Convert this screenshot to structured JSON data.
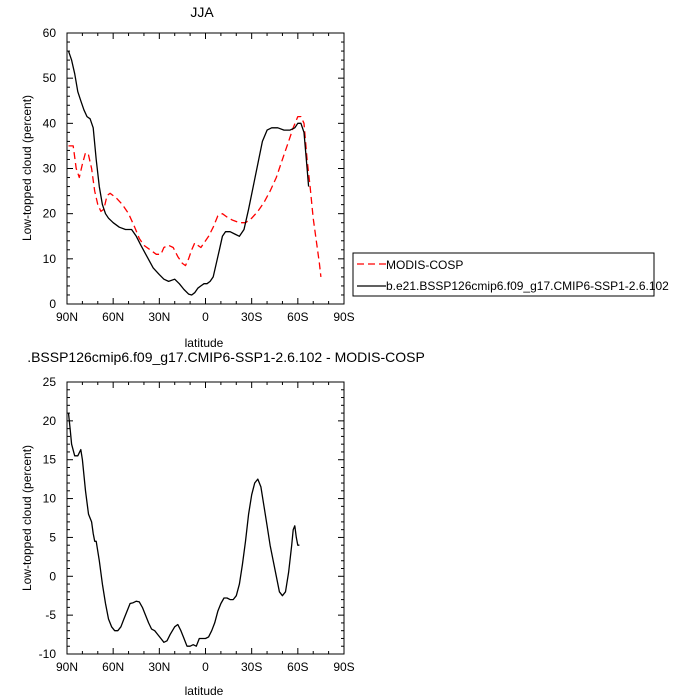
{
  "chart_data": [
    {
      "type": "line",
      "title": "JJA",
      "xlabel": "latitude",
      "ylabel": "Low-topped cloud (percent)",
      "xlim": [
        90,
        -90
      ],
      "ylim": [
        0,
        60
      ],
      "x_ticks": [
        90,
        60,
        30,
        0,
        -30,
        -60,
        -90
      ],
      "x_tick_labels": [
        "90N",
        "60N",
        "30N",
        "0",
        "30S",
        "60S",
        "90S"
      ],
      "y_ticks": [
        0,
        10,
        20,
        30,
        40,
        50,
        60
      ],
      "y_tick_labels": [
        "0",
        "10",
        "20",
        "30",
        "40",
        "50",
        "60"
      ],
      "legend_position": "right",
      "series": [
        {
          "name": "MODIS-COSP",
          "color": "#ff0000",
          "dash": "dashed",
          "points": [
            [
              89,
              35
            ],
            [
              86,
              35
            ],
            [
              84,
              30
            ],
            [
              82,
              28
            ],
            [
              80,
              31
            ],
            [
              78,
              33.5
            ],
            [
              76,
              33
            ],
            [
              74,
              30
            ],
            [
              72,
              25
            ],
            [
              70,
              22
            ],
            [
              68,
              20.5
            ],
            [
              66,
              21
            ],
            [
              64,
              24
            ],
            [
              62,
              24.5
            ],
            [
              58,
              23.5
            ],
            [
              54,
              22
            ],
            [
              50,
              20
            ],
            [
              46,
              17
            ],
            [
              43,
              14.5
            ],
            [
              40,
              13
            ],
            [
              36,
              12
            ],
            [
              32,
              11
            ],
            [
              29,
              11
            ],
            [
              27,
              12.5
            ],
            [
              24,
              13
            ],
            [
              21,
              12.5
            ],
            [
              18,
              10.5
            ],
            [
              15,
              9
            ],
            [
              13,
              8.5
            ],
            [
              11,
              10
            ],
            [
              9,
              12
            ],
            [
              7,
              13.5
            ],
            [
              5,
              13
            ],
            [
              3,
              12.5
            ],
            [
              1,
              13.5
            ],
            [
              -2,
              15
            ],
            [
              -5,
              17
            ],
            [
              -8,
              19.5
            ],
            [
              -11,
              20
            ],
            [
              -15,
              19
            ],
            [
              -18,
              18.5
            ],
            [
              -22,
              18
            ],
            [
              -26,
              18
            ],
            [
              -30,
              19
            ],
            [
              -34,
              20.5
            ],
            [
              -38,
              22.5
            ],
            [
              -42,
              25
            ],
            [
              -46,
              28
            ],
            [
              -50,
              32
            ],
            [
              -54,
              36
            ],
            [
              -57,
              39
            ],
            [
              -60,
              41.5
            ],
            [
              -62,
              41.5
            ],
            [
              -64,
              40
            ],
            [
              -66,
              32
            ],
            [
              -68,
              26
            ],
            [
              -70,
              19
            ],
            [
              -72,
              14
            ],
            [
              -74,
              9
            ],
            [
              -75,
              6
            ]
          ]
        },
        {
          "name": "b.e21.BSSP126cmip6.f09_g17.CMIP6-SSP1-2.6.102",
          "color": "#000000",
          "dash": "solid",
          "points": [
            [
              89,
              56
            ],
            [
              87,
              54
            ],
            [
              85,
              51
            ],
            [
              83,
              47
            ],
            [
              81,
              45
            ],
            [
              79,
              43
            ],
            [
              77,
              41.5
            ],
            [
              75,
              41
            ],
            [
              73,
              39
            ],
            [
              71,
              32
            ],
            [
              69,
              26
            ],
            [
              67,
              22
            ],
            [
              65,
              20
            ],
            [
              63,
              19
            ],
            [
              60,
              18
            ],
            [
              56,
              17
            ],
            [
              52,
              16.5
            ],
            [
              48,
              16.5
            ],
            [
              45,
              15
            ],
            [
              42,
              13
            ],
            [
              38,
              10.5
            ],
            [
              34,
              8
            ],
            [
              30,
              6.5
            ],
            [
              27,
              5.5
            ],
            [
              24,
              5
            ],
            [
              20,
              5.5
            ],
            [
              17,
              4.5
            ],
            [
              14,
              3.2
            ],
            [
              11,
              2.2
            ],
            [
              9,
              2
            ],
            [
              7,
              2.5
            ],
            [
              5,
              3.5
            ],
            [
              3,
              4
            ],
            [
              1,
              4.5
            ],
            [
              -1,
              4.5
            ],
            [
              -3,
              5
            ],
            [
              -5,
              6
            ],
            [
              -7,
              9
            ],
            [
              -9,
              12
            ],
            [
              -11,
              15
            ],
            [
              -13,
              16
            ],
            [
              -16,
              16
            ],
            [
              -19,
              15.5
            ],
            [
              -22,
              15
            ],
            [
              -25,
              16.5
            ],
            [
              -28,
              21
            ],
            [
              -31,
              26
            ],
            [
              -34,
              31
            ],
            [
              -37,
              36
            ],
            [
              -40,
              38.5
            ],
            [
              -43,
              39
            ],
            [
              -47,
              39
            ],
            [
              -51,
              38.5
            ],
            [
              -55,
              38.5
            ],
            [
              -58,
              39
            ],
            [
              -60,
              40
            ],
            [
              -62,
              40
            ],
            [
              -64,
              38
            ],
            [
              -66,
              30
            ],
            [
              -67,
              26
            ]
          ]
        }
      ]
    },
    {
      "type": "line",
      "title": ".BSSP126cmip6.f09_g17.CMIP6-SSP1-2.6.102 - MODIS-COSP",
      "xlabel": "latitude",
      "ylabel": "Low-topped cloud (percent)",
      "xlim": [
        90,
        -90
      ],
      "ylim": [
        -10,
        25
      ],
      "x_ticks": [
        90,
        60,
        30,
        0,
        -30,
        -60,
        -90
      ],
      "x_tick_labels": [
        "90N",
        "60N",
        "30N",
        "0",
        "30S",
        "60S",
        "90S"
      ],
      "y_ticks": [
        -10,
        -5,
        0,
        5,
        10,
        15,
        20,
        25
      ],
      "y_tick_labels": [
        "-10",
        "-5",
        "0",
        "5",
        "10",
        "15",
        "20",
        "25"
      ],
      "series": [
        {
          "color": "#000000",
          "dash": "solid",
          "points": [
            [
              89,
              21
            ],
            [
              88,
              19
            ],
            [
              87,
              17
            ],
            [
              85,
              15.5
            ],
            [
              83,
              15.5
            ],
            [
              81,
              16.3
            ],
            [
              80,
              15
            ],
            [
              78,
              11
            ],
            [
              76,
              8
            ],
            [
              74,
              7
            ],
            [
              73,
              5.5
            ],
            [
              72,
              4.5
            ],
            [
              71,
              4.5
            ],
            [
              69,
              2
            ],
            [
              67,
              -1
            ],
            [
              65,
              -3.5
            ],
            [
              63,
              -5.5
            ],
            [
              61,
              -6.5
            ],
            [
              59,
              -7
            ],
            [
              57,
              -7
            ],
            [
              55,
              -6.5
            ],
            [
              53,
              -5.5
            ],
            [
              51,
              -4.5
            ],
            [
              49,
              -3.5
            ],
            [
              47,
              -3.4
            ],
            [
              45,
              -3.2
            ],
            [
              43,
              -3.3
            ],
            [
              41,
              -4
            ],
            [
              39,
              -5
            ],
            [
              37,
              -6
            ],
            [
              35,
              -6.8
            ],
            [
              33,
              -7
            ],
            [
              31,
              -7.5
            ],
            [
              29,
              -8
            ],
            [
              27,
              -8.5
            ],
            [
              25,
              -8.3
            ],
            [
              23,
              -7.5
            ],
            [
              20,
              -6.5
            ],
            [
              18,
              -6.2
            ],
            [
              16,
              -7
            ],
            [
              14,
              -8
            ],
            [
              12,
              -9
            ],
            [
              10,
              -9
            ],
            [
              8,
              -8.8
            ],
            [
              6,
              -9
            ],
            [
              4,
              -8
            ],
            [
              2,
              -8
            ],
            [
              0,
              -8
            ],
            [
              -2,
              -7.8
            ],
            [
              -4,
              -7
            ],
            [
              -6,
              -6
            ],
            [
              -8,
              -4.5
            ],
            [
              -10,
              -3.5
            ],
            [
              -12,
              -2.8
            ],
            [
              -14,
              -2.8
            ],
            [
              -16,
              -3
            ],
            [
              -18,
              -3
            ],
            [
              -20,
              -2.5
            ],
            [
              -22,
              -1
            ],
            [
              -24,
              1.5
            ],
            [
              -26,
              4.5
            ],
            [
              -28,
              8
            ],
            [
              -30,
              10.5
            ],
            [
              -32,
              12
            ],
            [
              -34,
              12.5
            ],
            [
              -36,
              11.5
            ],
            [
              -38,
              9
            ],
            [
              -40,
              6.5
            ],
            [
              -42,
              4
            ],
            [
              -44,
              2
            ],
            [
              -46,
              0
            ],
            [
              -48,
              -2
            ],
            [
              -50,
              -2.5
            ],
            [
              -52,
              -2
            ],
            [
              -54,
              0.5
            ],
            [
              -56,
              4
            ],
            [
              -57,
              6
            ],
            [
              -58,
              6.5
            ],
            [
              -59,
              5
            ],
            [
              -60,
              4
            ],
            [
              -61,
              4
            ]
          ]
        }
      ]
    }
  ]
}
